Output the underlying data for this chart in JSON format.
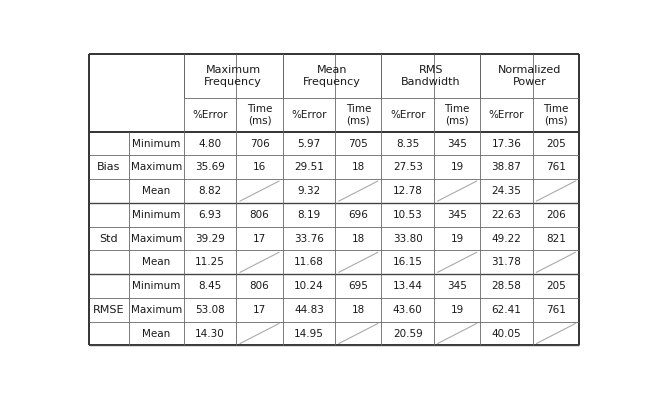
{
  "col_headers_line1": [
    "Maximum\nFrequency",
    "Mean\nFrequency",
    "RMS\nBandwidth",
    "Normalized\nPower"
  ],
  "col_headers_line2": [
    "%Error",
    "Time\n(ms)",
    "%Error",
    "Time\n(ms)",
    "%Error",
    "Time\n(ms)",
    "%Error",
    "Time\n(ms)"
  ],
  "row_groups": [
    "Bias",
    "Std",
    "RMSE"
  ],
  "row_labels": [
    "Minimum",
    "Maximum",
    "Mean"
  ],
  "data": {
    "Bias": {
      "Minimum": [
        "4.80",
        "706",
        "5.97",
        "705",
        "8.35",
        "345",
        "17.36",
        "205"
      ],
      "Maximum": [
        "35.69",
        "16",
        "29.51",
        "18",
        "27.53",
        "19",
        "38.87",
        "761"
      ],
      "Mean": [
        "8.82",
        "",
        "9.32",
        "",
        "12.78",
        "",
        "24.35",
        ""
      ]
    },
    "Std": {
      "Minimum": [
        "6.93",
        "806",
        "8.19",
        "696",
        "10.53",
        "345",
        "22.63",
        "206"
      ],
      "Maximum": [
        "39.29",
        "17",
        "33.76",
        "18",
        "33.80",
        "19",
        "49.22",
        "821"
      ],
      "Mean": [
        "11.25",
        "",
        "11.68",
        "",
        "16.15",
        "",
        "31.78",
        ""
      ]
    },
    "RMSE": {
      "Minimum": [
        "8.45",
        "806",
        "10.24",
        "695",
        "13.44",
        "345",
        "28.58",
        "205"
      ],
      "Maximum": [
        "53.08",
        "17",
        "44.83",
        "18",
        "43.60",
        "19",
        "62.41",
        "761"
      ],
      "Mean": [
        "14.30",
        "",
        "14.95",
        "",
        "20.59",
        "",
        "40.05",
        ""
      ]
    }
  },
  "background_color": "#ffffff",
  "font_size": 7.5,
  "header_font_size": 8.0
}
